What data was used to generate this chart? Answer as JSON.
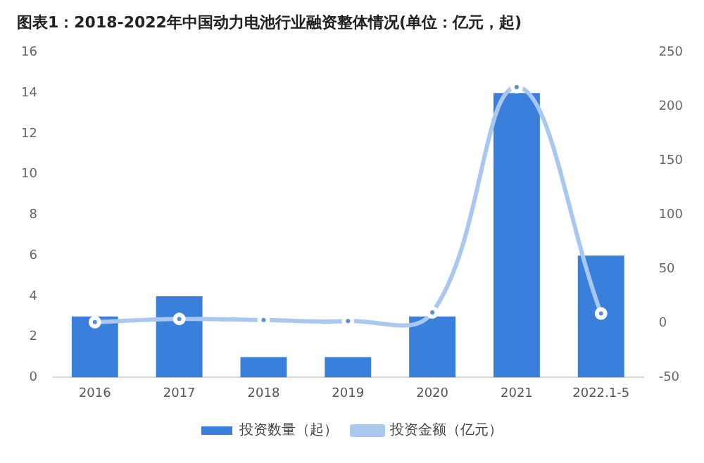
{
  "chart_data": {
    "type": "bar",
    "title": "图表1：2018-2022年中国动力电池行业融资整体情况(单位：亿元，起)",
    "categories": [
      "2016",
      "2017",
      "2018",
      "2019",
      "2020",
      "2021",
      "2022.1-5"
    ],
    "series": [
      {
        "name": "投资数量（起）",
        "color": "#3a7fdb",
        "values": [
          3,
          4,
          1,
          1,
          3,
          14,
          6
        ]
      },
      {
        "name": "投资金额（亿元）",
        "type": "line",
        "axis": "y2",
        "color": "#a9c8f0",
        "values": [
          1,
          4,
          3,
          2,
          10,
          218,
          9
        ]
      }
    ],
    "ylim": [
      0,
      16
    ],
    "yticks": [
      0,
      2,
      4,
      6,
      8,
      10,
      12,
      14,
      16
    ],
    "y2lim": [
      -50,
      250
    ],
    "y2ticks": [
      -50,
      0,
      50,
      100,
      150,
      200,
      250
    ],
    "legend": "bottom",
    "marker": "circle",
    "grid": false
  }
}
